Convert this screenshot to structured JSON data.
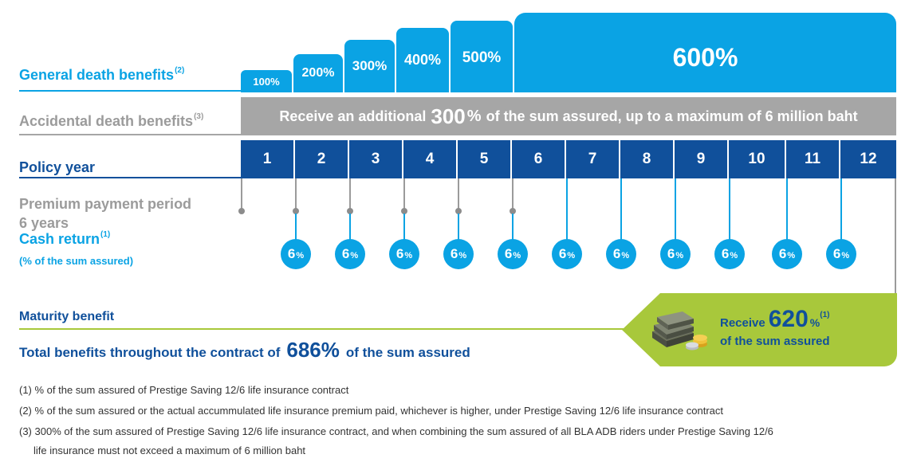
{
  "general_death": {
    "label": "General death benefits",
    "sup": "(2)",
    "steps": [
      "100%",
      "200%",
      "300%",
      "400%",
      "500%",
      "600%"
    ]
  },
  "accidental_death": {
    "label": "Accidental death benefits",
    "sup": "(3)",
    "text_before": "Receive an additional",
    "highlight": "300",
    "pct": "%",
    "text_after": "of the sum assured, up to a  maximum of 6  million baht"
  },
  "policy_year": {
    "label": "Policy year",
    "years": [
      "1",
      "2",
      "3",
      "4",
      "5",
      "6",
      "7",
      "8",
      "9",
      "10",
      "11",
      "12"
    ]
  },
  "premium": {
    "line1": "Premium payment period",
    "line2": "6 years"
  },
  "cash_return": {
    "label": "Cash return",
    "sup": "(1)",
    "sub": "(% of the sum assured)",
    "value": "6",
    "unit": "%"
  },
  "maturity": {
    "label": "Maturity benefit",
    "receive": "Receive",
    "value": "620",
    "unit": "%",
    "sup": "(1)",
    "line2": "of the sum assured"
  },
  "total": {
    "before": "Total benefits throughout the contract of",
    "value": "686%",
    "after": "of the sum assured"
  },
  "notes": [
    "(1) % of the sum assured of Prestige Saving 12/6 life insurance contract",
    "(2) % of the sum assured or the actual accummulated life insurance premium paid, whichever is higher, under Prestige Saving 12/6 life insurance contract",
    "(3) 300% of the sum assured of Prestige Saving 12/6 life insurance contract, and when combining the sum assured of all BLA ADB riders under Prestige Saving 12/6",
    "life insurance must not exceed a maximum of 6 million baht"
  ],
  "colors": {
    "light_blue": "#0aa3e4",
    "navy": "#10509b",
    "gray": "#a6a6a6",
    "green": "#a8c83b"
  }
}
